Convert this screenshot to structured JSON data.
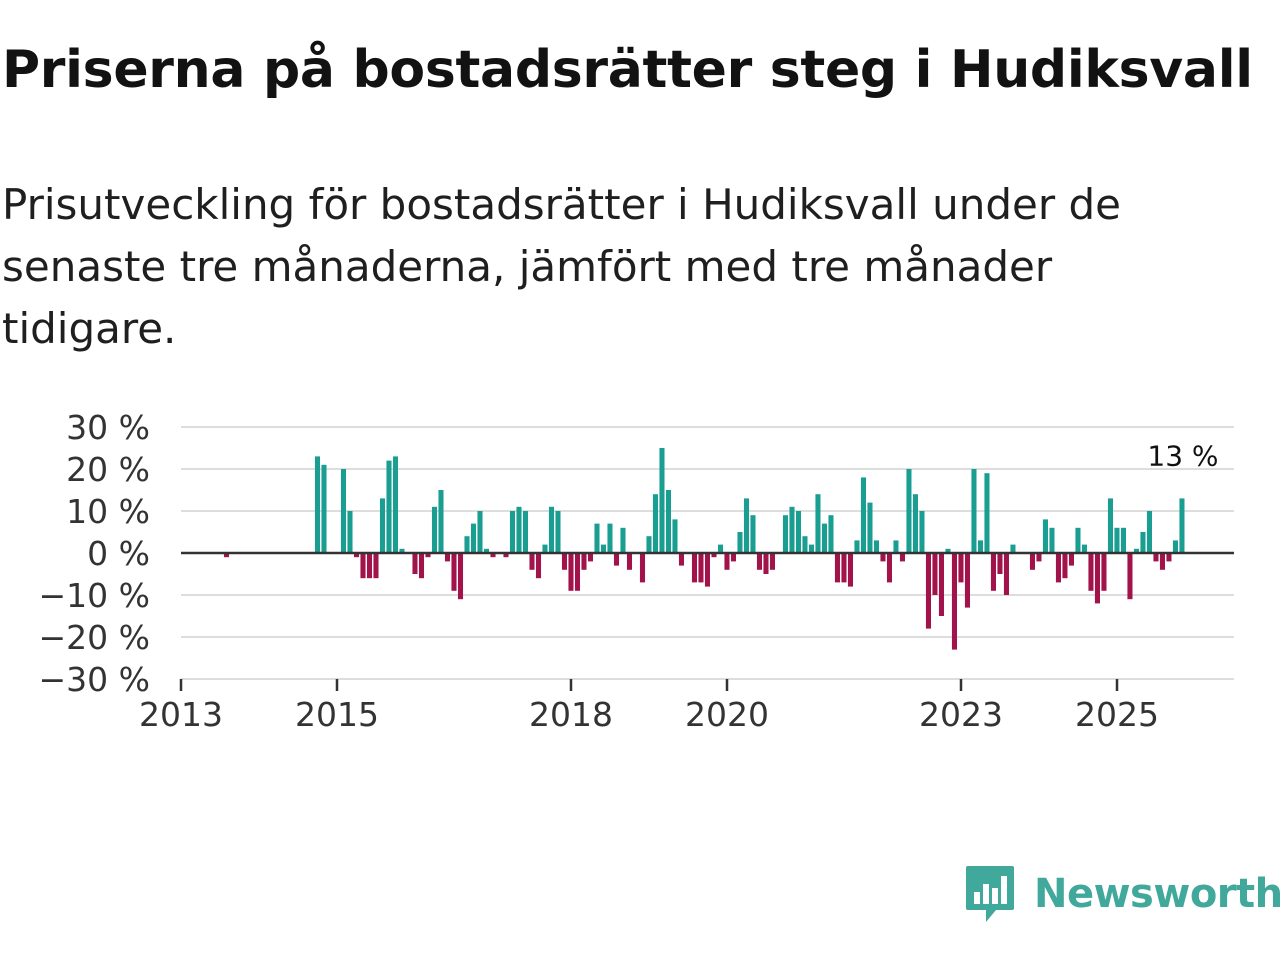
{
  "title": "Priserna på bostadsrätter steg i Hudiksvall",
  "subtitle": "Prisutveckling för bostadsrätter i Hudiksvall under de senaste tre månaderna, jämfört med tre månader tidigare.",
  "brand": {
    "name": "Newsworthy",
    "color": "#41a89c"
  },
  "colors": {
    "positive": "#1b9e92",
    "negative": "#a3134b",
    "grid": "#dddddd",
    "zero_line": "#333333"
  },
  "chart_data": {
    "type": "bar",
    "x_start": 2013.0,
    "x_step": 0.08333,
    "xlim": [
      2013.0,
      2026.5
    ],
    "ylim": [
      -30,
      30
    ],
    "y_ticks": [
      30,
      20,
      10,
      0,
      -10,
      -20,
      -30
    ],
    "y_tick_labels": [
      "30 %",
      "20 %",
      "10 %",
      "0 %",
      "−10 %",
      "−20 %",
      "−30 %"
    ],
    "x_ticks": [
      2013,
      2015,
      2018,
      2020,
      2023,
      2025
    ],
    "x_tick_labels": [
      "2013",
      "2015",
      "2018",
      "2020",
      "2023",
      "2025"
    ],
    "values": [
      0,
      0,
      0,
      0,
      0,
      0,
      0,
      -1,
      0,
      0,
      0,
      0,
      0,
      0,
      0,
      0,
      0,
      0,
      0,
      0,
      0,
      23,
      21,
      0,
      0,
      20,
      10,
      -1,
      -6,
      -6,
      -6,
      13,
      22,
      23,
      1,
      0,
      -5,
      -6,
      -1,
      11,
      15,
      -2,
      -9,
      -11,
      4,
      7,
      10,
      1,
      -1,
      0,
      -1,
      10,
      11,
      10,
      -4,
      -6,
      2,
      11,
      10,
      -4,
      -9,
      -9,
      -4,
      -2,
      7,
      2,
      7,
      -3,
      6,
      -4,
      0,
      -7,
      4,
      14,
      25,
      15,
      8,
      -3,
      0,
      -7,
      -7,
      -8,
      -1,
      2,
      -4,
      -2,
      5,
      13,
      9,
      -4,
      -5,
      -4,
      0,
      9,
      11,
      10,
      4,
      2,
      14,
      7,
      9,
      -7,
      -7,
      -8,
      3,
      18,
      12,
      3,
      -2,
      -7,
      3,
      -2,
      20,
      14,
      10,
      -18,
      -10,
      -15,
      1,
      -23,
      -7,
      -13,
      20,
      3,
      19,
      -9,
      -5,
      -10,
      2,
      0,
      0,
      -4,
      -2,
      8,
      6,
      -7,
      -6,
      -3,
      6,
      2,
      -9,
      -12,
      -9,
      13,
      6,
      6,
      -11,
      1,
      5,
      10,
      -2,
      -4,
      -2,
      3,
      13
    ],
    "annotation": {
      "label": "13 %",
      "value": 13
    }
  }
}
